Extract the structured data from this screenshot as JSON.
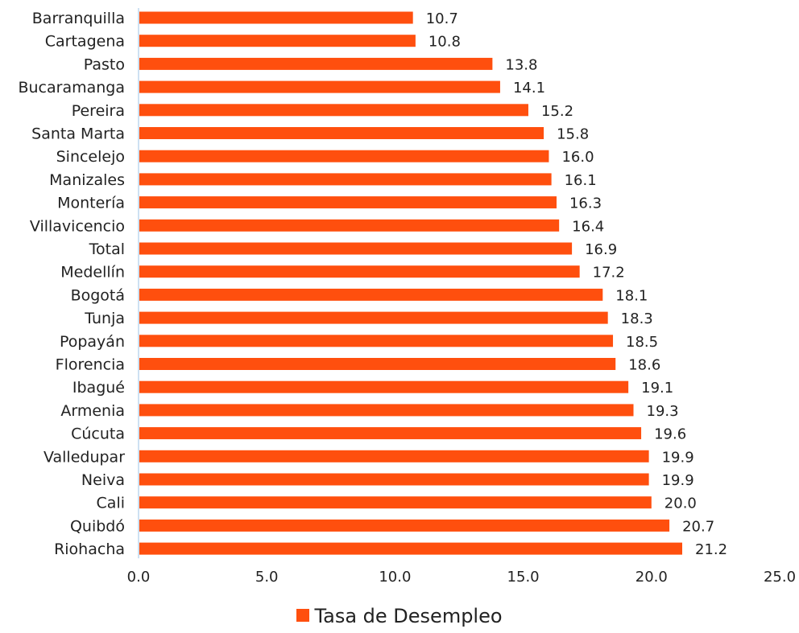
{
  "chart_data": {
    "type": "bar",
    "orientation": "horizontal",
    "categories": [
      "Barranquilla",
      "Cartagena",
      "Pasto",
      "Bucaramanga",
      "Pereira",
      "Santa Marta",
      "Sincelejo",
      "Manizales",
      "Montería",
      "Villavicencio",
      "Total",
      "Medellín",
      "Bogotá",
      "Tunja",
      "Popayán",
      "Florencia",
      "Ibagué",
      "Armenia",
      "Cúcuta",
      "Valledupar",
      "Neiva",
      "Cali",
      "Quibdó",
      "Riohacha"
    ],
    "series": [
      {
        "name": "Tasa de Desempleo",
        "values": [
          10.7,
          10.8,
          13.8,
          14.1,
          15.2,
          15.8,
          16.0,
          16.1,
          16.3,
          16.4,
          16.9,
          17.2,
          18.1,
          18.3,
          18.5,
          18.6,
          19.1,
          19.3,
          19.6,
          19.9,
          19.9,
          20.0,
          20.7,
          21.2
        ],
        "labels": [
          "10.7",
          "10.8",
          "13.8",
          "14.1",
          "15.2",
          "15.8",
          "16.0",
          "16.1",
          "16.3",
          "16.4",
          "16.9",
          "17.2",
          "18.1",
          "18.3",
          "18.5",
          "18.6",
          "19.1",
          "19.3",
          "19.6",
          "19.9",
          "19.9",
          "20.0",
          "20.7",
          "21.2"
        ],
        "color": "#FF4F0E"
      }
    ],
    "xlim": [
      0,
      25
    ],
    "x_ticks": [
      "0.0",
      "5.0",
      "10.0",
      "15.0",
      "20.0",
      "25.0"
    ],
    "x_tick_values": [
      0,
      5,
      10,
      15,
      20,
      25
    ],
    "grid": false,
    "legend_position": "bottom",
    "axis_color": "#BDD7EE"
  }
}
